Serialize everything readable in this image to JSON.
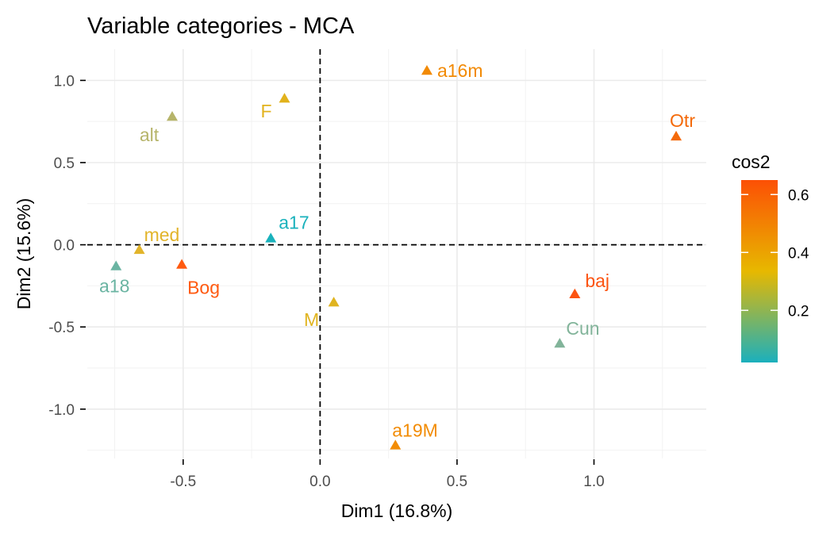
{
  "chart_data": {
    "type": "scatter",
    "title": "Variable categories - MCA",
    "xlabel": "Dim1 (16.8%)",
    "ylabel": "Dim2 (15.6%)",
    "xlim": [
      -0.85,
      1.41
    ],
    "ylim": [
      -1.3,
      1.19
    ],
    "x_ticks": [
      -0.5,
      0.0,
      0.5,
      1.0
    ],
    "x_tick_labels": [
      "-0.5",
      "0.0",
      "0.5",
      "1.0"
    ],
    "y_ticks": [
      1.0,
      0.5,
      0.0,
      -0.5,
      -1.0
    ],
    "y_tick_labels": [
      "1.0",
      "0.5",
      "0.0",
      "-0.5",
      "-1.0"
    ],
    "grid": true,
    "reference_lines": {
      "x": 0,
      "y": 0,
      "style": "dashed"
    },
    "marker": "triangle",
    "color_variable": "cos2",
    "points": [
      {
        "label": "a16m",
        "x": 0.39,
        "y": 1.06,
        "cos2": 0.45,
        "color": "#F28A05"
      },
      {
        "label": "Otr",
        "x": 1.3,
        "y": 0.66,
        "cos2": 0.55,
        "color": "#F46A0A"
      },
      {
        "label": "F",
        "x": -0.13,
        "y": 0.89,
        "cos2": 0.32,
        "color": "#E2B21C"
      },
      {
        "label": "alt",
        "x": -0.54,
        "y": 0.78,
        "cos2": 0.2,
        "color": "#B6B46A"
      },
      {
        "label": "a17",
        "x": -0.18,
        "y": 0.04,
        "cos2": 0.03,
        "color": "#1AB2BC"
      },
      {
        "label": "med",
        "x": -0.66,
        "y": -0.03,
        "cos2": 0.32,
        "color": "#E2B42A"
      },
      {
        "label": "a18",
        "x": -0.745,
        "y": -0.13,
        "cos2": 0.12,
        "color": "#6AB4A2"
      },
      {
        "label": "Bog",
        "x": -0.505,
        "y": -0.12,
        "cos2": 0.62,
        "color": "#FF5A10"
      },
      {
        "label": "M",
        "x": 0.05,
        "y": -0.35,
        "cos2": 0.32,
        "color": "#E0B420"
      },
      {
        "label": "baj",
        "x": 0.93,
        "y": -0.3,
        "cos2": 0.62,
        "color": "#FC5412"
      },
      {
        "label": "Cun",
        "x": 0.875,
        "y": -0.6,
        "cos2": 0.14,
        "color": "#82B49A"
      },
      {
        "label": "a19M",
        "x": 0.275,
        "y": -1.22,
        "cos2": 0.45,
        "color": "#F28C05"
      }
    ],
    "legend": {
      "title": "cos2",
      "position": "right",
      "type": "gradient",
      "range": [
        0.02,
        0.65
      ],
      "ticks": [
        0.6,
        0.4,
        0.2
      ],
      "tick_labels": [
        "0.6",
        "0.4",
        "0.2"
      ],
      "gradient_colors": [
        "#00AFBB",
        "#E7B800",
        "#FC4E07"
      ]
    }
  }
}
